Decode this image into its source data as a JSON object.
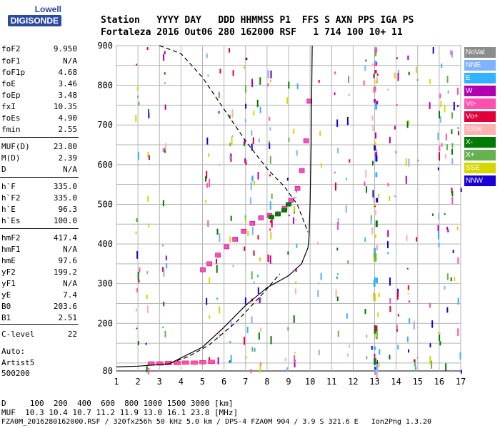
{
  "logo": {
    "line1": "Lowell",
    "line2": "DIGISONDE"
  },
  "header": {
    "line1": "Station   YYYY DAY   DDD HHMMSS P1  FFS S AXN PPS IGA PS",
    "line2": "Fortaleza 2016 Out06 280 162000 RSF   1 714 100 10+ 11"
  },
  "params": [
    {
      "name": "foF2",
      "value": "9.950"
    },
    {
      "name": "foF1",
      "value": "N/A"
    },
    {
      "name": "foF1p",
      "value": "4.68"
    },
    {
      "name": "foE",
      "value": "3.46"
    },
    {
      "name": "foEp",
      "value": "3.48"
    },
    {
      "name": "fxI",
      "value": "10.35"
    },
    {
      "name": "foEs",
      "value": "4.90"
    },
    {
      "name": "fmin",
      "value": "2.55"
    },
    {
      "name": "MUF(D)",
      "value": "23.80"
    },
    {
      "name": "M(D)",
      "value": "2.39"
    },
    {
      "name": "D",
      "value": "N/A"
    },
    {
      "name": "h`F",
      "value": "335.0"
    },
    {
      "name": "h`F2",
      "value": "335.0"
    },
    {
      "name": "h`E",
      "value": "96.3"
    },
    {
      "name": "h`Es",
      "value": "100.0"
    },
    {
      "name": "hmF2",
      "value": "417.4"
    },
    {
      "name": "hmF1",
      "value": "N/A"
    },
    {
      "name": "hmE",
      "value": "97.6"
    },
    {
      "name": "yF2",
      "value": "199.2"
    },
    {
      "name": "yF1",
      "value": "N/A"
    },
    {
      "name": "yE",
      "value": "7.4"
    },
    {
      "name": "B0",
      "value": "203.6"
    },
    {
      "name": "B1",
      "value": "2.51"
    },
    {
      "name": "C-level",
      "value": "22"
    }
  ],
  "auto": {
    "label": "Auto:",
    "name": "Artist5",
    "version": "500200"
  },
  "legend": [
    {
      "label": "NoVal",
      "color": "#8c8c8c"
    },
    {
      "label": "NNE",
      "color": "#7fb2ff"
    },
    {
      "label": "E",
      "color": "#33b2ff"
    },
    {
      "label": "W",
      "color": "#b000b0"
    },
    {
      "label": "Vo-",
      "color": "#ff4fb0"
    },
    {
      "label": "Vo+",
      "color": "#e0003a"
    },
    {
      "label": "SSW",
      "color": "#ffb0b0"
    },
    {
      "label": "X-",
      "color": "#007a00"
    },
    {
      "label": "X+",
      "color": "#66b24f"
    },
    {
      "label": "SSE",
      "color": "#d6d600"
    },
    {
      "label": "NNW",
      "color": "#1a00d6"
    }
  ],
  "footer": {
    "d_row": "D     100  200  400  600  800 1000 1500 3000 [km]",
    "muf_row": "MUF  10.3 10.4 10.7 11.2 11.9 13.0 16.1 23.8 [MHz]",
    "file_row": "FZA0M_2016280162000.RSF / 320fx256h 50 kHz 5.0 km / DPS-4 FZA0M 904 / 3.9 S 321.6 E   Ion2Png 1.3.20"
  },
  "chart_data": {
    "type": "scatter",
    "xlabel": "",
    "ylabel": "",
    "xlim": [
      1,
      17
    ],
    "ylim": [
      80,
      900
    ],
    "x_ticks": [
      1,
      2,
      3,
      4,
      5,
      6,
      7,
      8,
      9,
      10,
      11,
      12,
      13,
      14,
      15,
      16,
      17
    ],
    "y_ticks": [
      80,
      200,
      300,
      400,
      500,
      600,
      700,
      800,
      900
    ],
    "grid": true,
    "o_trace_f2": [
      {
        "x": 5.0,
        "y": 335
      },
      {
        "x": 5.3,
        "y": 350
      },
      {
        "x": 5.7,
        "y": 372
      },
      {
        "x": 6.1,
        "y": 393
      },
      {
        "x": 6.5,
        "y": 412
      },
      {
        "x": 6.9,
        "y": 432
      },
      {
        "x": 7.3,
        "y": 452
      },
      {
        "x": 7.7,
        "y": 466
      },
      {
        "x": 8.1,
        "y": 472
      },
      {
        "x": 8.5,
        "y": 476
      },
      {
        "x": 8.8,
        "y": 490
      },
      {
        "x": 9.1,
        "y": 510
      },
      {
        "x": 9.4,
        "y": 540
      },
      {
        "x": 9.6,
        "y": 585
      },
      {
        "x": 9.8,
        "y": 660
      },
      {
        "x": 9.95,
        "y": 760
      }
    ],
    "x_trace_f2": [
      {
        "x": 8.2,
        "y": 468
      },
      {
        "x": 8.5,
        "y": 475
      },
      {
        "x": 8.8,
        "y": 485
      },
      {
        "x": 9.0,
        "y": 500
      }
    ],
    "e_trace": [
      {
        "x": 2.6,
        "y": 98
      },
      {
        "x": 3.0,
        "y": 98
      },
      {
        "x": 3.4,
        "y": 99
      },
      {
        "x": 3.8,
        "y": 99
      },
      {
        "x": 4.2,
        "y": 100
      },
      {
        "x": 4.6,
        "y": 100
      },
      {
        "x": 5.0,
        "y": 101
      },
      {
        "x": 5.4,
        "y": 102
      }
    ],
    "profile_solid": [
      {
        "x": 1.0,
        "y": 90
      },
      {
        "x": 2.0,
        "y": 92
      },
      {
        "x": 3.0,
        "y": 96
      },
      {
        "x": 3.46,
        "y": 98
      },
      {
        "x": 5.0,
        "y": 140
      },
      {
        "x": 6.0,
        "y": 190
      },
      {
        "x": 7.0,
        "y": 245
      },
      {
        "x": 8.0,
        "y": 290
      },
      {
        "x": 9.0,
        "y": 320
      },
      {
        "x": 9.6,
        "y": 350
      },
      {
        "x": 9.9,
        "y": 390
      },
      {
        "x": 9.95,
        "y": 417
      },
      {
        "x": 10.0,
        "y": 500
      },
      {
        "x": 10.05,
        "y": 650
      },
      {
        "x": 10.1,
        "y": 900
      }
    ],
    "profile_dashed": [
      {
        "x": 3.5,
        "y": 100
      },
      {
        "x": 4.3,
        "y": 115
      },
      {
        "x": 5.3,
        "y": 145
      },
      {
        "x": 6.6,
        "y": 205
      },
      {
        "x": 7.8,
        "y": 275
      },
      {
        "x": 8.6,
        "y": 325
      }
    ],
    "virtual_height_dashed": [
      {
        "x": 3.0,
        "y": 900
      },
      {
        "x": 4.0,
        "y": 880
      },
      {
        "x": 5.0,
        "y": 820
      },
      {
        "x": 6.0,
        "y": 740
      },
      {
        "x": 7.0,
        "y": 660
      },
      {
        "x": 8.0,
        "y": 590
      },
      {
        "x": 8.8,
        "y": 545
      },
      {
        "x": 9.4,
        "y": 500
      },
      {
        "x": 9.9,
        "y": 430
      }
    ]
  }
}
